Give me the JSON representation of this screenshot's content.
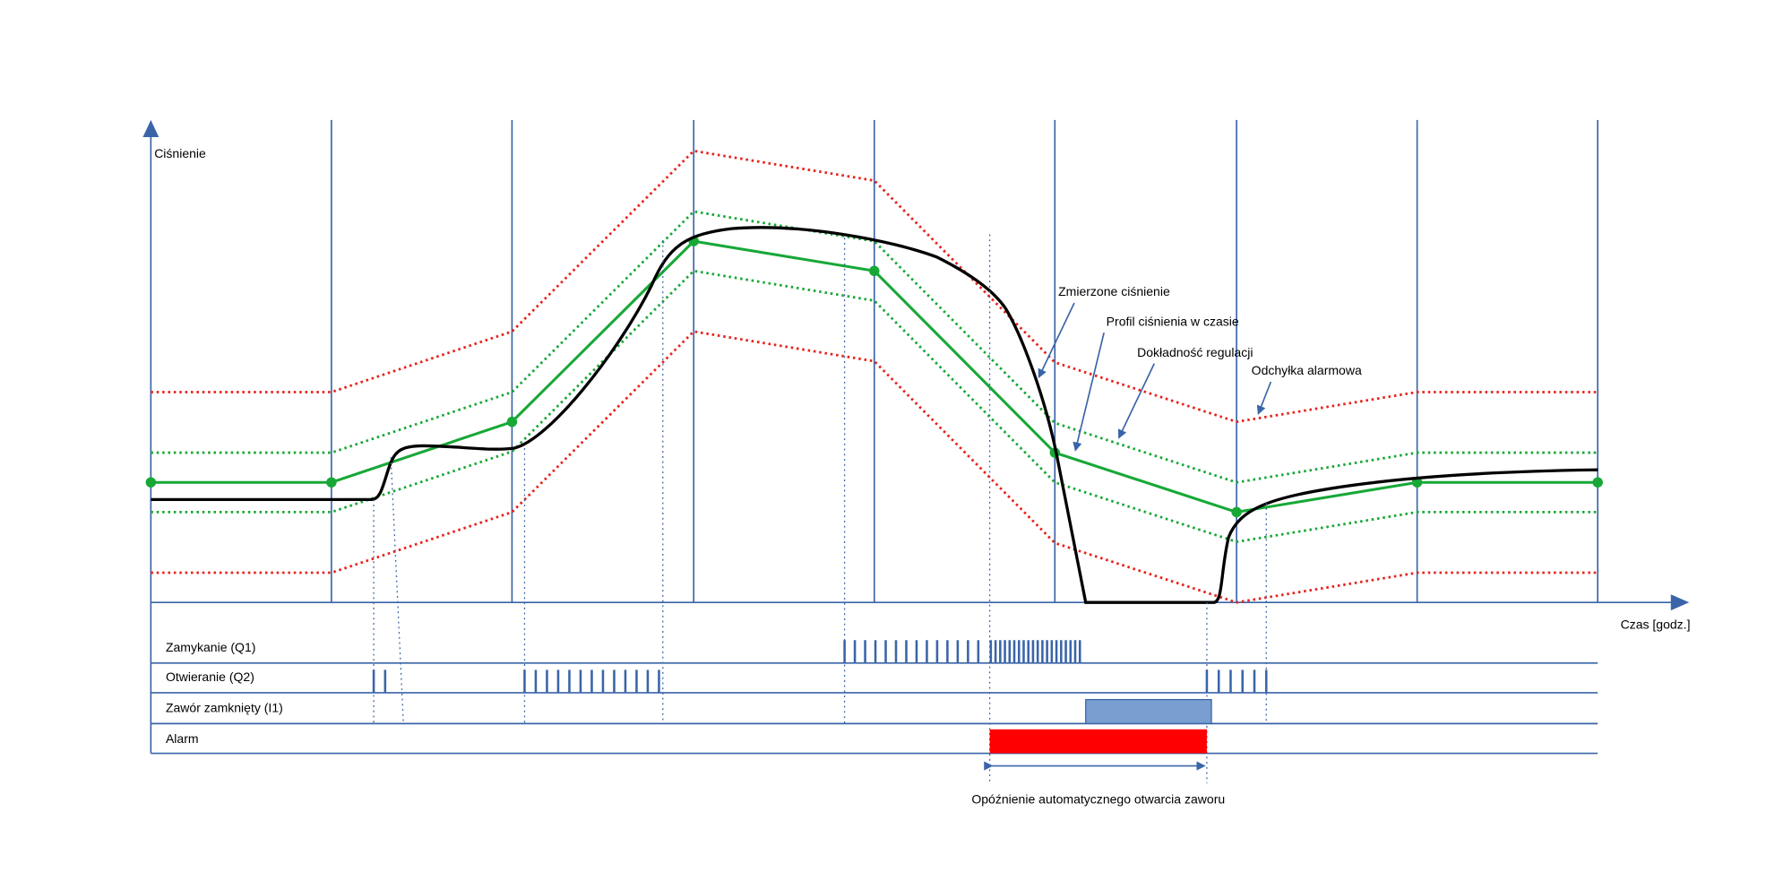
{
  "axes": {
    "y_label": "Ciśnienie",
    "x_label": "Czas [godz.]"
  },
  "annotations": [
    "Zmierzone ciśnienie",
    "Profil ciśnienia w czasie",
    "Dokładność regulacji",
    "Odchyłka alarmowa"
  ],
  "signals": [
    "Zamykanie (Q1)",
    "Otwieranie (Q2)",
    "Zawór zamknięty (I1)",
    "Alarm"
  ],
  "delay_label": "Opóźnienie automatycznego otwarcia zaworu"
}
